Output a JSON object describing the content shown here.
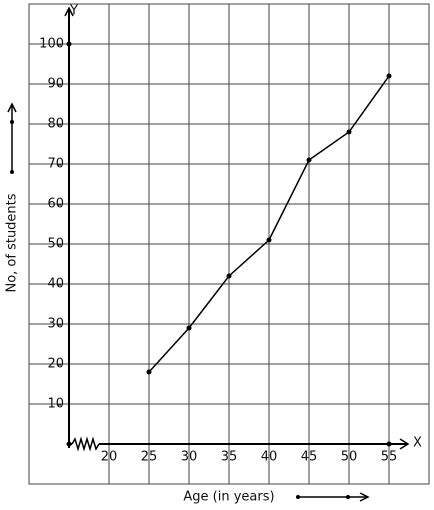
{
  "chart_data": {
    "type": "line",
    "x_axis_name": "X",
    "y_axis_name": "Y",
    "xlabel": "Age (in years)",
    "ylabel": "No, of students",
    "x": [
      25,
      30,
      35,
      40,
      45,
      50,
      55
    ],
    "values": [
      18,
      29,
      42,
      51,
      71,
      78,
      92
    ],
    "color": "#000000",
    "xlim": [
      10,
      60
    ],
    "ylim": [
      -10,
      110
    ],
    "xticks": [
      20,
      25,
      30,
      35,
      40,
      45,
      50,
      55
    ],
    "yticks": [
      10,
      20,
      30,
      40,
      50,
      60,
      70,
      80,
      90,
      100
    ],
    "grid": true
  }
}
